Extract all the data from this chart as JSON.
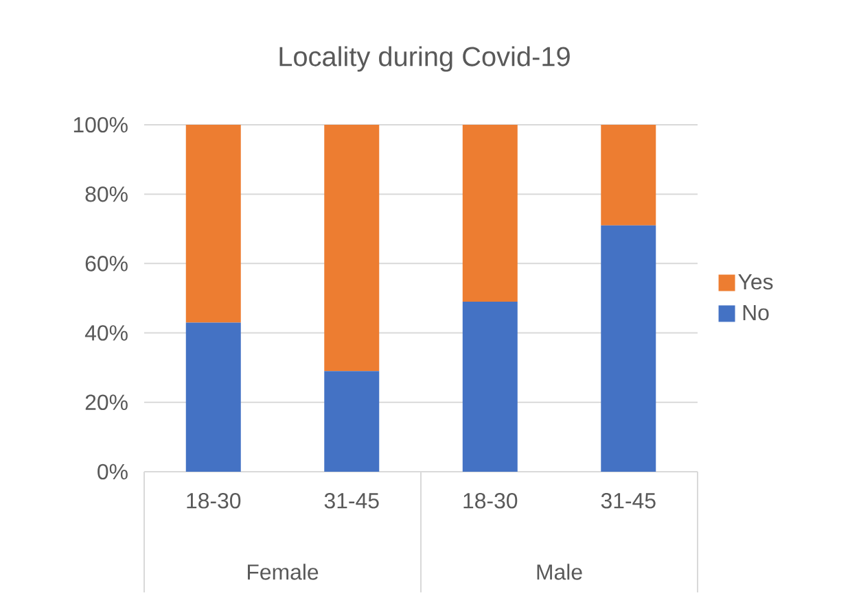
{
  "chart_data": {
    "type": "bar",
    "title": "Locality during Covid-19",
    "stacked": true,
    "categories": [
      "18-30",
      "31-45",
      "18-30",
      "31-45"
    ],
    "series": [
      {
        "name": "No",
        "color": "#4472c4",
        "values": [
          43,
          29,
          49,
          71
        ]
      },
      {
        "name": "Yes",
        "color": "#ed7d31",
        "values": [
          57,
          71,
          51,
          29
        ]
      }
    ],
    "ylim": [
      0,
      100
    ],
    "yticks": [
      {
        "value": 0,
        "label": "0%"
      },
      {
        "value": 20,
        "label": "20%"
      },
      {
        "value": 40,
        "label": "40%"
      },
      {
        "value": 60,
        "label": "60%"
      },
      {
        "value": 80,
        "label": "80%"
      },
      {
        "value": 100,
        "label": "100%"
      }
    ],
    "grid": "y",
    "legend": "right",
    "annotations": [
      "Female",
      "Male"
    ]
  }
}
